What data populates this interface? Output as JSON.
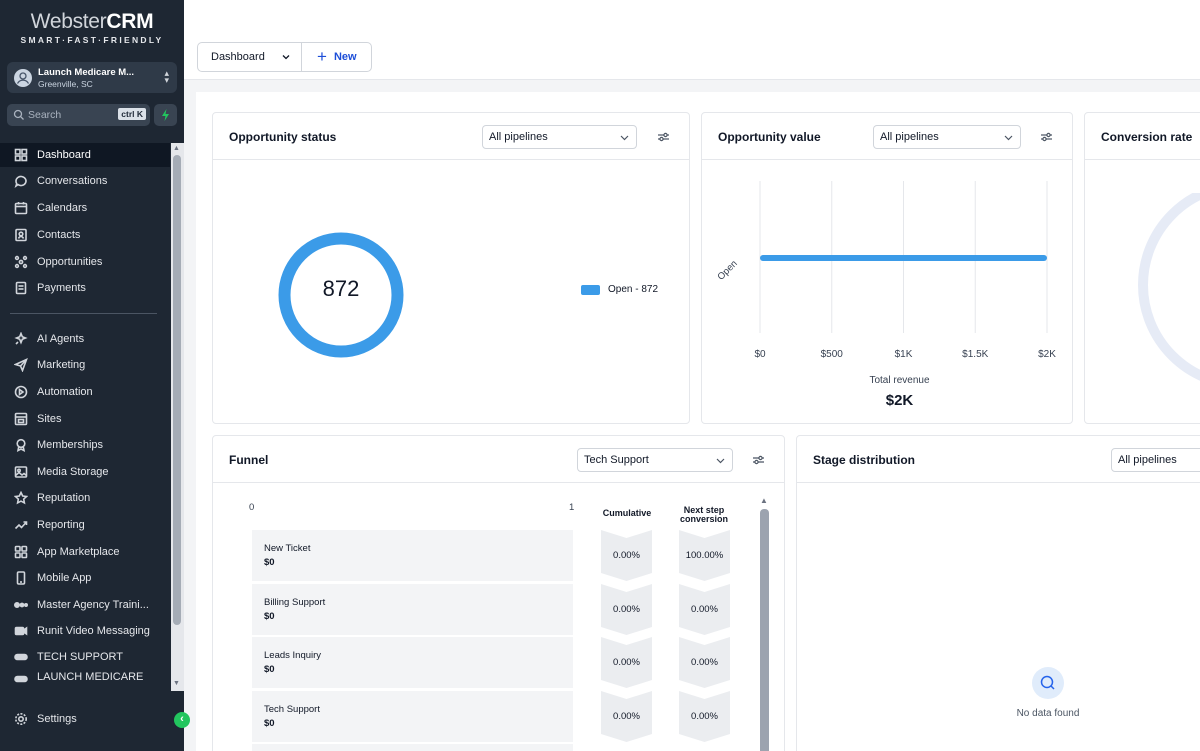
{
  "brand": {
    "logo_a": "Webster",
    "logo_b": "CRM",
    "tagline": "SMART·FAST·FRIENDLY"
  },
  "account": {
    "name": "Launch Medicare M...",
    "location": "Greenville, SC"
  },
  "search": {
    "placeholder": "Search",
    "shortcut": "ctrl K"
  },
  "sidebar": {
    "items": [
      {
        "label": "Dashboard",
        "icon": "grid-icon"
      },
      {
        "label": "Conversations",
        "icon": "chat-icon"
      },
      {
        "label": "Calendars",
        "icon": "calendar-icon"
      },
      {
        "label": "Contacts",
        "icon": "contacts-icon"
      },
      {
        "label": "Opportunities",
        "icon": "opportunities-icon"
      },
      {
        "label": "Payments",
        "icon": "payments-icon"
      },
      {
        "label": "AI Agents",
        "icon": "sparkle-icon"
      },
      {
        "label": "Marketing",
        "icon": "send-icon"
      },
      {
        "label": "Automation",
        "icon": "automation-icon"
      },
      {
        "label": "Sites",
        "icon": "sites-icon"
      },
      {
        "label": "Memberships",
        "icon": "membership-icon"
      },
      {
        "label": "Media Storage",
        "icon": "image-icon"
      },
      {
        "label": "Reputation",
        "icon": "star-icon"
      },
      {
        "label": "Reporting",
        "icon": "trend-icon"
      },
      {
        "label": "App Marketplace",
        "icon": "apps-icon"
      },
      {
        "label": "Mobile App",
        "icon": "phone-icon"
      },
      {
        "label": "Master Agency Traini...",
        "icon": "dots-icon"
      },
      {
        "label": "Runit Video Messaging",
        "icon": "video-icon"
      },
      {
        "label": "TECH SUPPORT",
        "icon": "tech-icon"
      },
      {
        "label": "LAUNCH MEDICARE",
        "icon": "launch-icon"
      }
    ],
    "settings": "Settings"
  },
  "toolbar": {
    "dashboard_label": "Dashboard",
    "new_label": "New"
  },
  "cards": {
    "opp_status": {
      "title": "Opportunity status",
      "filter": "All pipelines",
      "total": "872",
      "legend": "Open - 872"
    },
    "opp_value": {
      "title": "Opportunity value",
      "filter": "All pipelines",
      "y_label": "Open",
      "ticks": [
        "$0",
        "$500",
        "$1K",
        "$1.5K",
        "$2K"
      ],
      "caption": "Total revenue",
      "total": "$2K"
    },
    "conversion": {
      "title": "Conversion rate"
    },
    "funnel": {
      "title": "Funnel",
      "filter": "Tech Support",
      "axis_min": "0",
      "axis_max": "1",
      "col_cumulative": "Cumulative",
      "col_next_a": "Next step",
      "col_next_b": "conversion",
      "rows": [
        {
          "stage": "New Ticket",
          "value": "$0",
          "cumulative": "0.00%",
          "next": "100.00%"
        },
        {
          "stage": "Billing Support",
          "value": "$0",
          "cumulative": "0.00%",
          "next": "0.00%"
        },
        {
          "stage": "Leads Inquiry",
          "value": "$0",
          "cumulative": "0.00%",
          "next": "0.00%"
        },
        {
          "stage": "Tech Support",
          "value": "$0",
          "cumulative": "0.00%",
          "next": "0.00%"
        }
      ]
    },
    "stage": {
      "title": "Stage distribution",
      "filter": "All pipelines",
      "empty": "No data found"
    }
  },
  "chart_data": [
    {
      "type": "pie",
      "title": "Opportunity status",
      "categories": [
        "Open"
      ],
      "values": [
        872
      ],
      "center_label": "872",
      "legend": "right"
    },
    {
      "type": "bar",
      "title": "Opportunity value",
      "orientation": "horizontal",
      "categories": [
        "Open"
      ],
      "values": [
        2000
      ],
      "xlabel": "Total revenue",
      "xlim": [
        0,
        2000
      ],
      "xticks": [
        "$0",
        "$500",
        "$1K",
        "$1.5K",
        "$2K"
      ],
      "grid": true
    }
  ],
  "colors": {
    "accent": "#3b9be8",
    "sidebar": "#1e2733",
    "link": "#1d4ed8",
    "green": "#22c55e"
  }
}
